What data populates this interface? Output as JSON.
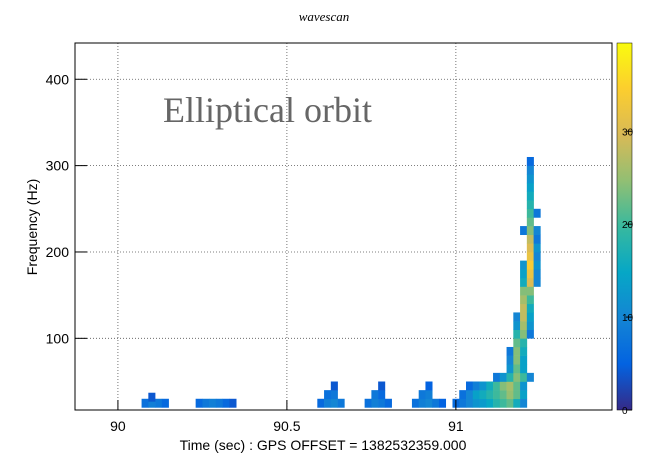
{
  "chart_data": {
    "type": "heatmap",
    "title": "wavescan",
    "annotation": "Elliptical orbit",
    "x_label": "Time (sec) : GPS OFFSET = 1382532359.000",
    "y_label": "Frequency (Hz)",
    "xlim": [
      89.873,
      91.462
    ],
    "ylim": [
      17,
      442
    ],
    "xticks": [
      90,
      90.5,
      91
    ],
    "yticks": [
      100,
      200,
      300,
      400
    ],
    "zlim": [
      0,
      39.5
    ],
    "zticks": [
      0,
      10,
      20,
      30
    ],
    "grid": true,
    "colorscale": [
      "#352a87",
      "#0363e1",
      "#1485d4",
      "#06a7c6",
      "#38b99e",
      "#92bf73",
      "#d9ba56",
      "#fcce2e",
      "#f9fb0e"
    ],
    "cells": [
      [
        90.08,
        25,
        7
      ],
      [
        90.1,
        25,
        9
      ],
      [
        90.12,
        25,
        8
      ],
      [
        90.14,
        25,
        6
      ],
      [
        90.1,
        32,
        4
      ],
      [
        90.24,
        25,
        6
      ],
      [
        90.26,
        25,
        8
      ],
      [
        90.28,
        25,
        9
      ],
      [
        90.3,
        25,
        8
      ],
      [
        90.32,
        25,
        6
      ],
      [
        90.34,
        25,
        4
      ],
      [
        90.6,
        25,
        6
      ],
      [
        90.62,
        25,
        9
      ],
      [
        90.64,
        25,
        10
      ],
      [
        90.66,
        25,
        8
      ],
      [
        90.62,
        35,
        7
      ],
      [
        90.64,
        35,
        8
      ],
      [
        90.64,
        45,
        4
      ],
      [
        90.74,
        25,
        7
      ],
      [
        90.76,
        25,
        9
      ],
      [
        90.78,
        25,
        8
      ],
      [
        90.8,
        25,
        6
      ],
      [
        90.76,
        35,
        8
      ],
      [
        90.78,
        35,
        6
      ],
      [
        90.78,
        45,
        4
      ],
      [
        90.88,
        25,
        7
      ],
      [
        90.9,
        25,
        9
      ],
      [
        90.92,
        25,
        10
      ],
      [
        90.94,
        25,
        8
      ],
      [
        90.96,
        25,
        5
      ],
      [
        90.9,
        35,
        8
      ],
      [
        90.92,
        35,
        9
      ],
      [
        90.92,
        45,
        5
      ],
      [
        91.0,
        25,
        6
      ],
      [
        91.02,
        25,
        8
      ],
      [
        91.04,
        25,
        10
      ],
      [
        91.06,
        25,
        12
      ],
      [
        91.08,
        25,
        13
      ],
      [
        91.1,
        25,
        15
      ],
      [
        91.12,
        25,
        18
      ],
      [
        91.14,
        25,
        20
      ],
      [
        91.16,
        25,
        22
      ],
      [
        91.18,
        25,
        16
      ],
      [
        91.2,
        25,
        10
      ],
      [
        91.02,
        35,
        7
      ],
      [
        91.04,
        35,
        10
      ],
      [
        91.06,
        35,
        14
      ],
      [
        91.08,
        35,
        16
      ],
      [
        91.1,
        35,
        18
      ],
      [
        91.12,
        35,
        20
      ],
      [
        91.14,
        35,
        22
      ],
      [
        91.16,
        35,
        25
      ],
      [
        91.18,
        35,
        22
      ],
      [
        91.2,
        35,
        14
      ],
      [
        91.04,
        45,
        6
      ],
      [
        91.06,
        45,
        9
      ],
      [
        91.08,
        45,
        12
      ],
      [
        91.1,
        45,
        16
      ],
      [
        91.12,
        45,
        20
      ],
      [
        91.14,
        45,
        24
      ],
      [
        91.16,
        45,
        26
      ],
      [
        91.18,
        45,
        22
      ],
      [
        91.2,
        45,
        12
      ],
      [
        91.12,
        55,
        8
      ],
      [
        91.14,
        55,
        12
      ],
      [
        91.16,
        55,
        18
      ],
      [
        91.18,
        55,
        24
      ],
      [
        91.2,
        55,
        20
      ],
      [
        91.22,
        55,
        10
      ],
      [
        91.16,
        65,
        12
      ],
      [
        91.18,
        65,
        22
      ],
      [
        91.2,
        65,
        14
      ],
      [
        91.16,
        75,
        10
      ],
      [
        91.18,
        75,
        24
      ],
      [
        91.2,
        75,
        14
      ],
      [
        91.16,
        85,
        8
      ],
      [
        91.18,
        85,
        24
      ],
      [
        91.2,
        85,
        16
      ],
      [
        91.18,
        95,
        22
      ],
      [
        91.2,
        95,
        18
      ],
      [
        91.18,
        105,
        18
      ],
      [
        91.2,
        105,
        24
      ],
      [
        91.22,
        105,
        8
      ],
      [
        91.18,
        115,
        12
      ],
      [
        91.2,
        115,
        26
      ],
      [
        91.22,
        115,
        12
      ],
      [
        91.18,
        125,
        10
      ],
      [
        91.2,
        125,
        28
      ],
      [
        91.22,
        125,
        14
      ],
      [
        91.2,
        135,
        28
      ],
      [
        91.22,
        135,
        16
      ],
      [
        91.2,
        145,
        26
      ],
      [
        91.22,
        145,
        20
      ],
      [
        91.2,
        155,
        24
      ],
      [
        91.22,
        155,
        24
      ],
      [
        91.2,
        165,
        16
      ],
      [
        91.22,
        165,
        30
      ],
      [
        91.24,
        165,
        10
      ],
      [
        91.2,
        175,
        14
      ],
      [
        91.22,
        175,
        32
      ],
      [
        91.24,
        175,
        10
      ],
      [
        91.2,
        185,
        12
      ],
      [
        91.22,
        185,
        34
      ],
      [
        91.24,
        185,
        12
      ],
      [
        91.22,
        195,
        32
      ],
      [
        91.24,
        195,
        10
      ],
      [
        91.22,
        205,
        30
      ],
      [
        91.24,
        205,
        12
      ],
      [
        91.22,
        215,
        28
      ],
      [
        91.24,
        215,
        8
      ],
      [
        91.2,
        225,
        8
      ],
      [
        91.22,
        225,
        24
      ],
      [
        91.24,
        225,
        10
      ],
      [
        91.22,
        235,
        22
      ],
      [
        91.22,
        245,
        20
      ],
      [
        91.24,
        245,
        8
      ],
      [
        91.22,
        255,
        18
      ],
      [
        91.22,
        265,
        16
      ],
      [
        91.22,
        275,
        14
      ],
      [
        91.22,
        285,
        12
      ],
      [
        91.22,
        295,
        10
      ],
      [
        91.22,
        305,
        6
      ]
    ]
  }
}
